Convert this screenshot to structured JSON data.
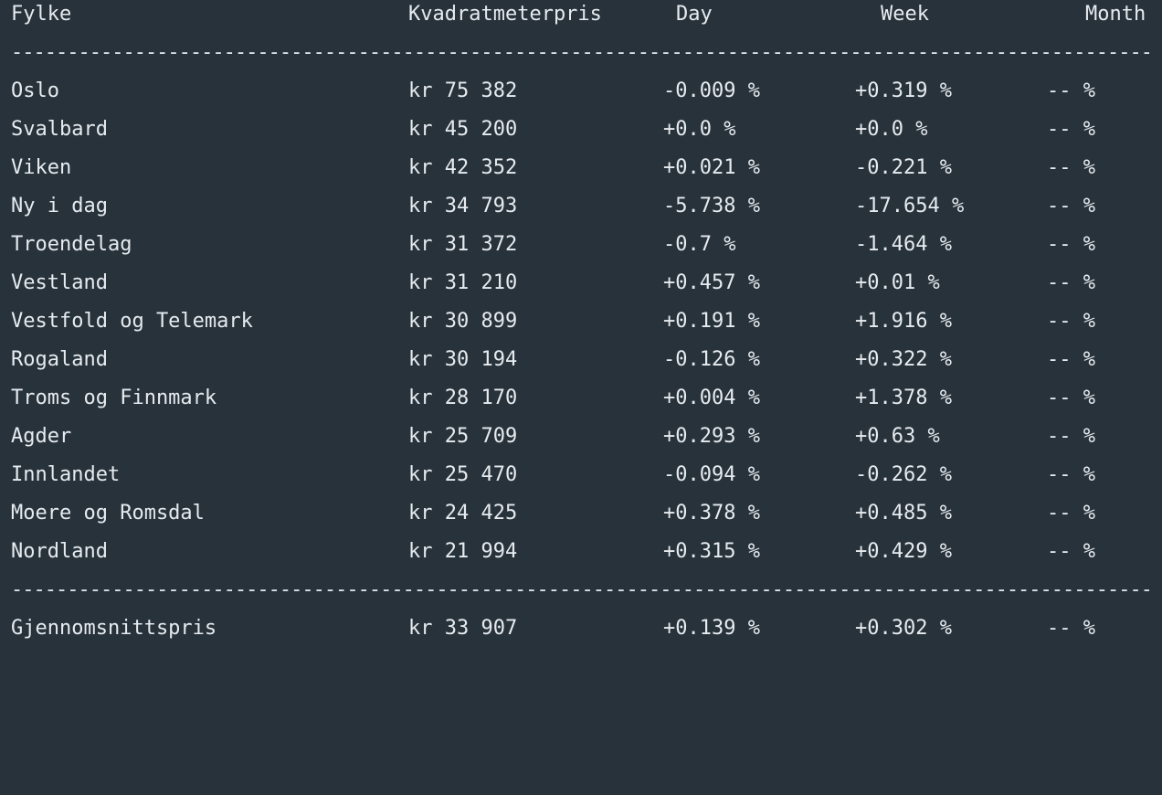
{
  "header": {
    "name": "Fylke",
    "price": "Kvadratmeterpris",
    "day": "Day",
    "week": "Week",
    "month": "Month"
  },
  "divider": "----------------------------------------------------------------------------------------------------------------",
  "rows": [
    {
      "name": "Oslo",
      "price": "kr 75 382",
      "day": "-0.009 %",
      "week": "+0.319 %",
      "month": "-- %"
    },
    {
      "name": "Svalbard",
      "price": "kr 45 200",
      "day": "+0.0 %",
      "week": "+0.0 %",
      "month": "-- %"
    },
    {
      "name": "Viken",
      "price": "kr 42 352",
      "day": "+0.021 %",
      "week": "-0.221 %",
      "month": "-- %"
    },
    {
      "name": "Ny i dag",
      "price": "kr 34 793",
      "day": "-5.738 %",
      "week": "-17.654 %",
      "month": "-- %"
    },
    {
      "name": "Troendelag",
      "price": "kr 31 372",
      "day": "-0.7 %",
      "week": "-1.464 %",
      "month": "-- %"
    },
    {
      "name": "Vestland",
      "price": "kr 31 210",
      "day": "+0.457 %",
      "week": "+0.01 %",
      "month": "-- %"
    },
    {
      "name": "Vestfold og Telemark",
      "price": "kr 30 899",
      "day": "+0.191 %",
      "week": "+1.916 %",
      "month": "-- %"
    },
    {
      "name": "Rogaland",
      "price": "kr 30 194",
      "day": "-0.126 %",
      "week": "+0.322 %",
      "month": "-- %"
    },
    {
      "name": "Troms og Finnmark",
      "price": "kr 28 170",
      "day": "+0.004 %",
      "week": "+1.378 %",
      "month": "-- %"
    },
    {
      "name": "Agder",
      "price": "kr 25 709",
      "day": "+0.293 %",
      "week": "+0.63 %",
      "month": "-- %"
    },
    {
      "name": "Innlandet",
      "price": "kr 25 470",
      "day": "-0.094 %",
      "week": "-0.262 %",
      "month": "-- %"
    },
    {
      "name": "Moere og Romsdal",
      "price": "kr 24 425",
      "day": "+0.378 %",
      "week": "+0.485 %",
      "month": "-- %"
    },
    {
      "name": "Nordland",
      "price": "kr 21 994",
      "day": "+0.315 %",
      "week": "+0.429 %",
      "month": "-- %"
    }
  ],
  "summary": {
    "name": "Gjennomsnittspris",
    "price": "kr 33 907",
    "day": "+0.139 %",
    "week": "+0.302 %",
    "month": "-- %"
  },
  "colors": {
    "background": "#27323b",
    "text": "#e6ebef"
  }
}
